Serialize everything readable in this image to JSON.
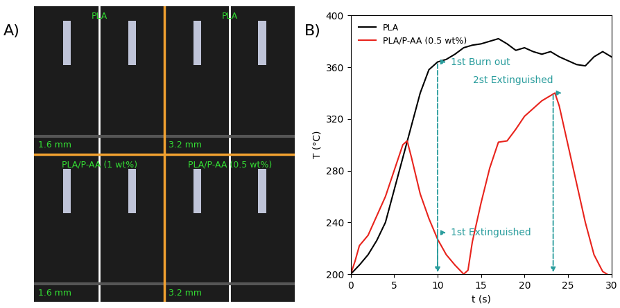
{
  "panel_a": {
    "label": "A)",
    "images": [
      {
        "title": "PLA",
        "thickness": "1.6 mm"
      },
      {
        "title": "PLA",
        "thickness": "3.2 mm"
      },
      {
        "title": "PLA/P-AA (1 wt%)",
        "thickness": "1.6 mm"
      },
      {
        "title": "PLA/P-AA (0.5 wt%)",
        "thickness": "3.2 mm"
      }
    ]
  },
  "panel_b": {
    "label": "B)"
  },
  "chart_data": {
    "type": "line",
    "x_label": "t (s)",
    "y_label": "T (°C)",
    "xlim": [
      0,
      30
    ],
    "xticks": [
      0,
      5,
      10,
      15,
      20,
      25,
      30
    ],
    "ylim": [
      200,
      400
    ],
    "yticks": [
      200,
      240,
      280,
      320,
      360,
      400
    ],
    "legend": "upper left",
    "series": [
      {
        "name": "PLA",
        "color": "#000000",
        "x": [
          0,
          1,
          2,
          3,
          4,
          5,
          6,
          7,
          8,
          9,
          10,
          11,
          12,
          13,
          14,
          15,
          16,
          17,
          18,
          19,
          20,
          21,
          22,
          23,
          24,
          25,
          26,
          27,
          28,
          29,
          30
        ],
        "values": [
          200,
          207,
          215,
          226,
          240,
          265,
          290,
          315,
          340,
          358,
          364,
          366,
          370,
          375,
          377,
          378,
          380,
          382,
          378,
          373,
          375,
          372,
          370,
          372,
          368,
          365,
          362,
          361,
          368,
          372,
          368
        ]
      },
      {
        "name": "PLA/P-AA (0.5 wt%)",
        "color": "#e8231c",
        "x": [
          0,
          0.5,
          1,
          2,
          3,
          4,
          5,
          6,
          6.5,
          7,
          8,
          9,
          10,
          11,
          12,
          13,
          13.5,
          14,
          15,
          16,
          17,
          18,
          19,
          20,
          21,
          22,
          23,
          23.5,
          24,
          25,
          26,
          27,
          28,
          29,
          29.5
        ],
        "values": [
          200,
          210,
          222,
          230,
          245,
          260,
          280,
          300,
          303,
          290,
          262,
          243,
          227,
          215,
          207,
          200,
          203,
          225,
          255,
          282,
          302,
          303,
          312,
          322,
          328,
          334,
          338,
          340,
          330,
          300,
          270,
          240,
          215,
          202,
          200
        ]
      }
    ],
    "annotations": [
      {
        "text": "1st Burn out",
        "x": 10,
        "y": 364
      },
      {
        "text": "1st Extinguished",
        "x": 10,
        "y": 232
      },
      {
        "text": "2st Extinguished",
        "x": 23.3,
        "y": 340
      }
    ]
  }
}
